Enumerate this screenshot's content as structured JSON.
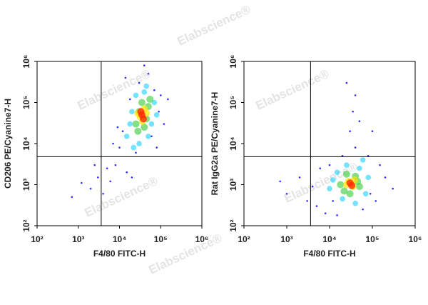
{
  "watermark": "Elabscience®",
  "chart_data": [
    {
      "type": "scatter",
      "x_label": "F4/80 FITC-H",
      "y_label": "CD206 PE/Cyanine7-H",
      "log_scale": true,
      "quadrant_x": 3600,
      "quadrant_y": 4800,
      "xlim": [
        100,
        1000000
      ],
      "ylim": [
        100,
        1000000
      ],
      "xticks": [
        {
          "value": 100,
          "label": "10²"
        },
        {
          "value": 1000,
          "label": "10³"
        },
        {
          "value": 10000,
          "label": "10⁴"
        },
        {
          "value": 100000,
          "label": "10⁵"
        },
        {
          "value": 1000000,
          "label": "10⁶"
        }
      ],
      "yticks": [
        {
          "value": 100,
          "label": "10²"
        },
        {
          "value": 1000,
          "label": "10³"
        },
        {
          "value": 10000,
          "label": "10⁴"
        },
        {
          "value": 100000,
          "label": "10⁵"
        },
        {
          "value": 1000000,
          "label": "10⁶"
        }
      ],
      "series": [
        {
          "color": "#1a1aff",
          "x": [
            2000,
            3000,
            1200,
            5000,
            8000,
            15000,
            6000,
            2500,
            10000,
            12000,
            18000,
            30000,
            50000,
            70000,
            90000,
            120000,
            60000,
            25000,
            9000,
            14000,
            40000,
            100000,
            4000,
            700,
            20000,
            80000,
            150000,
            7000
          ],
          "y": [
            800,
            1500,
            1100,
            2500,
            3000,
            2000,
            1200,
            3000,
            8000,
            20000,
            120000,
            300000,
            500000,
            200000,
            60000,
            30000,
            15000,
            6000,
            25000,
            400000,
            800000,
            150000,
            600,
            500,
            1500,
            8000,
            120000,
            10000
          ]
        },
        {
          "color": "#00ccff",
          "x": [
            15000,
            20000,
            25000,
            45000,
            70000,
            60000,
            30000,
            18000,
            40000,
            80000,
            50000,
            22000
          ],
          "y": [
            15000,
            60000,
            150000,
            250000,
            100000,
            30000,
            10000,
            30000,
            180000,
            50000,
            15000,
            8000
          ]
        },
        {
          "color": "#33cc33",
          "x": [
            25000,
            35000,
            50000,
            30000,
            45000,
            28000,
            55000,
            40000
          ],
          "y": [
            30000,
            100000,
            80000,
            60000,
            40000,
            20000,
            120000,
            25000
          ]
        },
        {
          "color": "#ffe600",
          "x": [
            32000,
            40000,
            36000,
            28000,
            45000
          ],
          "y": [
            45000,
            70000,
            35000,
            55000,
            55000
          ]
        },
        {
          "color": "#ff2a00",
          "x": [
            35000,
            38000,
            33000
          ],
          "y": [
            50000,
            40000,
            60000
          ]
        }
      ]
    },
    {
      "type": "scatter",
      "x_label": "F4/80  FITC-H",
      "y_label": "Rat IgG2a PE/Cyanine7-H",
      "log_scale": true,
      "quadrant_x": 3600,
      "quadrant_y": 4800,
      "xlim": [
        100,
        1000000
      ],
      "ylim": [
        100,
        1000000
      ],
      "xticks": [
        {
          "value": 100,
          "label": "10²"
        },
        {
          "value": 1000,
          "label": "10³"
        },
        {
          "value": 10000,
          "label": "10⁴"
        },
        {
          "value": 100000,
          "label": "10⁵"
        },
        {
          "value": 1000000,
          "label": "10⁶"
        }
      ],
      "yticks": [
        {
          "value": 100,
          "label": "10²"
        },
        {
          "value": 1000,
          "label": "10³"
        },
        {
          "value": 10000,
          "label": "10⁴"
        },
        {
          "value": 100000,
          "label": "10⁵"
        },
        {
          "value": 1000000,
          "label": "10⁶"
        }
      ],
      "series": [
        {
          "color": "#1a1aff",
          "x": [
            1000,
            2000,
            3000,
            5000,
            8000,
            15000,
            60000,
            120000,
            200000,
            150000,
            80000,
            40000,
            30000,
            35000,
            25000,
            40000,
            20000,
            10000,
            6000,
            4000,
            100000,
            50000,
            300000,
            700,
            12000,
            90000
          ],
          "y": [
            600,
            1500,
            400,
            300,
            200,
            180,
            250,
            400,
            1500,
            3000,
            5000,
            8000,
            20000,
            60000,
            300000,
            150000,
            5000,
            3000,
            2500,
            900,
            20000,
            35000,
            800,
            1200,
            400,
            600
          ]
        },
        {
          "color": "#00ccff",
          "x": [
            10000,
            15000,
            25000,
            50000,
            80000,
            70000,
            40000,
            20000,
            12000,
            60000
          ],
          "y": [
            800,
            2000,
            3000,
            2500,
            1500,
            600,
            350,
            450,
            1300,
            4000
          ]
        },
        {
          "color": "#33cc33",
          "x": [
            18000,
            25000,
            40000,
            50000,
            30000,
            22000,
            45000
          ],
          "y": [
            1000,
            1800,
            1600,
            900,
            600,
            700,
            1200
          ]
        },
        {
          "color": "#ffe600",
          "x": [
            28000,
            35000,
            25000,
            38000
          ],
          "y": [
            1200,
            900,
            1000,
            1300
          ]
        },
        {
          "color": "#ff2a00",
          "x": [
            30000,
            33000
          ],
          "y": [
            1100,
            950
          ]
        }
      ]
    }
  ]
}
